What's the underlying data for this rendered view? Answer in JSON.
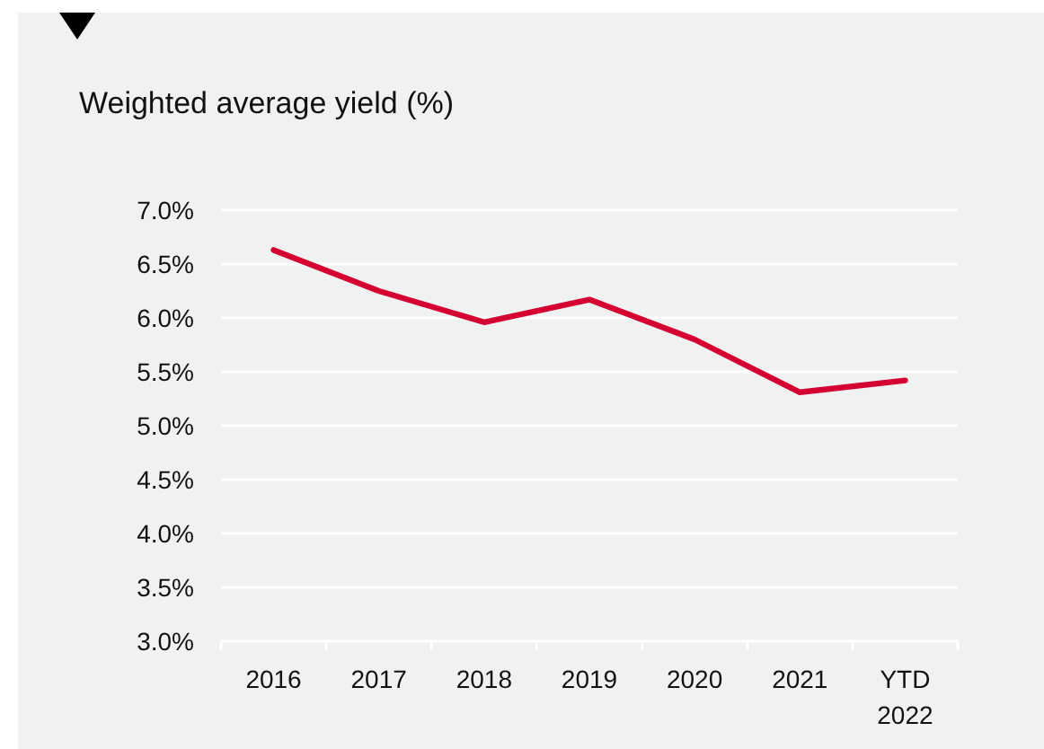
{
  "chart_data": {
    "type": "line",
    "title": "Weighted average yield (%)",
    "categories": [
      "2016",
      "2017",
      "2018",
      "2019",
      "2020",
      "2021",
      "YTD 2022"
    ],
    "series": [
      {
        "color": "#d50032",
        "values": [
          6.63,
          6.25,
          5.96,
          6.17,
          5.8,
          5.31,
          5.42
        ]
      }
    ],
    "ylim": [
      3,
      7
    ],
    "yticks": [
      {
        "value": 3,
        "label": "3.0%"
      },
      {
        "value": 3.5,
        "label": "3.5%"
      },
      {
        "value": 4,
        "label": "4.0%"
      },
      {
        "value": 4.5,
        "label": "4.5%"
      },
      {
        "value": 5,
        "label": "5.0%"
      },
      {
        "value": 5.5,
        "label": "5.5%"
      },
      {
        "value": 6,
        "label": "6.0%"
      },
      {
        "value": 6.5,
        "label": "6.5%"
      },
      {
        "value": 7,
        "label": "7.0%"
      }
    ],
    "grid": "y",
    "marker": "none",
    "line_style": "solid"
  }
}
